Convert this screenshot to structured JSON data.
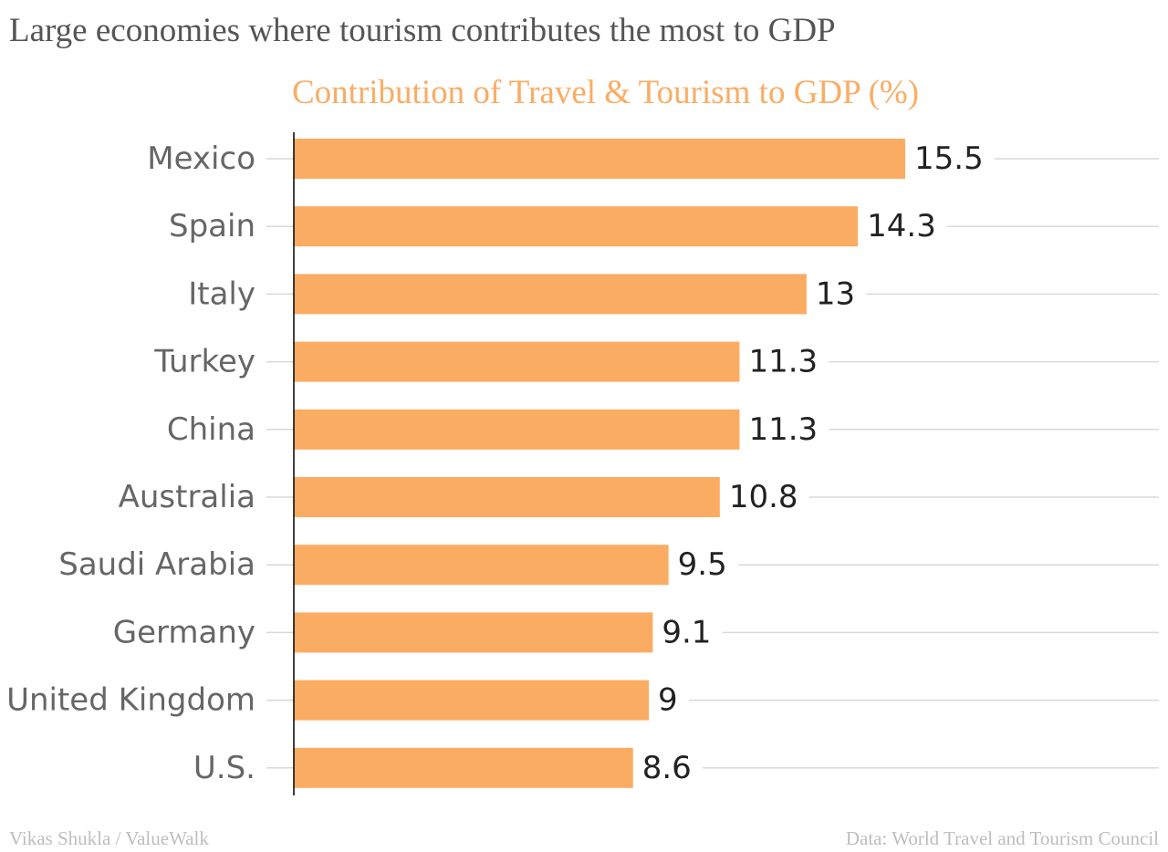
{
  "title": "Large economies where tourism contributes the most to GDP",
  "footer": {
    "credit": "Vikas Shukla / ValueWalk",
    "source": "Data: World Travel and Tourism Council"
  },
  "colors": {
    "bar": "#fbac63",
    "subtitle": "#fbac63",
    "title": "#555555",
    "category_label": "#666666",
    "value_label": "#222222",
    "grid": "#d9d9d9",
    "axis": "#000000",
    "footer": "#bdbdbd"
  },
  "chart_data": {
    "type": "bar",
    "orientation": "horizontal",
    "title": "Contribution of Travel & Tourism to GDP (%)",
    "categories": [
      "Mexico",
      "Spain",
      "Italy",
      "Turkey",
      "China",
      "Australia",
      "Saudi Arabia",
      "Germany",
      "United Kingdom",
      "U.S."
    ],
    "values": [
      15.5,
      14.3,
      13,
      11.3,
      11.3,
      10.8,
      9.5,
      9.1,
      9,
      8.6
    ],
    "value_labels": [
      "15.5",
      "14.3",
      "13",
      "11.3",
      "11.3",
      "10.8",
      "9.5",
      "9.1",
      "9",
      "8.6"
    ],
    "xlabel": "",
    "ylabel": "",
    "xlim": [
      0,
      15.5
    ],
    "data_labels": true,
    "grid": true,
    "legend": "none"
  }
}
